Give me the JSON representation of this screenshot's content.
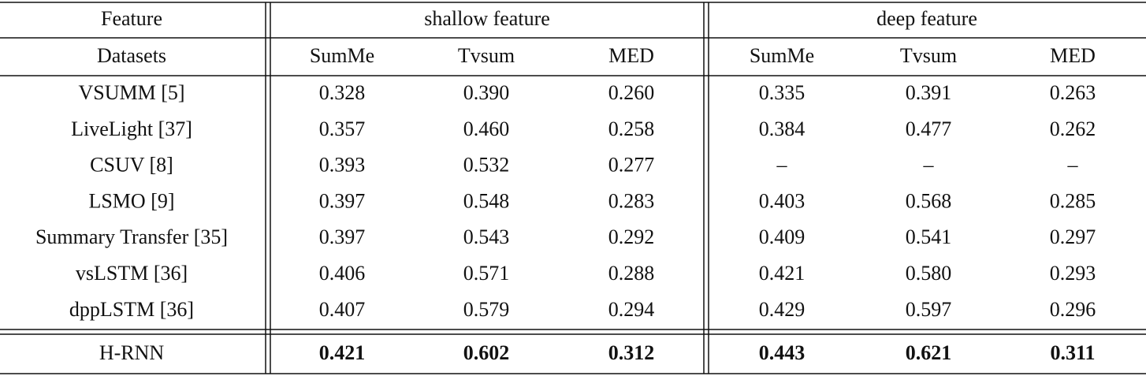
{
  "header": {
    "feature": "Feature",
    "groups": [
      "shallow feature",
      "deep feature"
    ]
  },
  "subheader": {
    "label": "Datasets",
    "columns": [
      "SumMe",
      "Tvsum",
      "MED",
      "SumMe",
      "Tvsum",
      "MED"
    ]
  },
  "rows": [
    {
      "method": "VSUMM [5]",
      "values": [
        "0.328",
        "0.390",
        "0.260",
        "0.335",
        "0.391",
        "0.263"
      ]
    },
    {
      "method": "LiveLight [37]",
      "values": [
        "0.357",
        "0.460",
        "0.258",
        "0.384",
        "0.477",
        "0.262"
      ]
    },
    {
      "method": "CSUV [8]",
      "values": [
        "0.393",
        "0.532",
        "0.277",
        "–",
        "–",
        "–"
      ]
    },
    {
      "method": "LSMO [9]",
      "values": [
        "0.397",
        "0.548",
        "0.283",
        "0.403",
        "0.568",
        "0.285"
      ]
    },
    {
      "method": "Summary Transfer [35]",
      "values": [
        "0.397",
        "0.543",
        "0.292",
        "0.409",
        "0.541",
        "0.297"
      ]
    },
    {
      "method": "vsLSTM [36]",
      "values": [
        "0.406",
        "0.571",
        "0.288",
        "0.421",
        "0.580",
        "0.293"
      ]
    },
    {
      "method": "dppLSTM [36]",
      "values": [
        "0.407",
        "0.579",
        "0.294",
        "0.429",
        "0.597",
        "0.296"
      ]
    }
  ],
  "final_row": {
    "method": "H-RNN",
    "values": [
      "0.421",
      "0.602",
      "0.312",
      "0.443",
      "0.621",
      "0.311"
    ]
  }
}
